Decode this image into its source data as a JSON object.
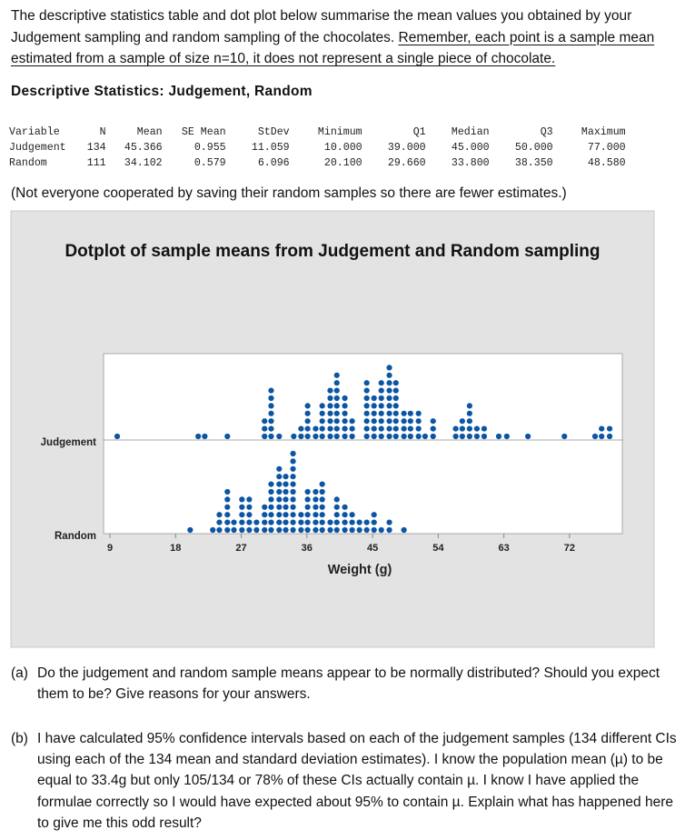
{
  "intro": {
    "part1": "The descriptive statistics table and dot plot below summarise the mean values you obtained by your Judgement sampling and random sampling of the chocolates. ",
    "part2": "Remember, each point is a sample mean estimated from a sample of size n=10, it does not represent a single piece of chocolate."
  },
  "stats": {
    "heading": "Descriptive Statistics: Judgement, Random",
    "columns": [
      "Variable",
      "N",
      "Mean",
      "SE Mean",
      "StDev",
      "Minimum",
      "Q1",
      "Median",
      "Q3",
      "Maximum"
    ],
    "rows": [
      [
        "Judgement",
        "134",
        "45.366",
        "0.955",
        "11.059",
        "10.000",
        "39.000",
        "45.000",
        "50.000",
        "77.000"
      ],
      [
        "Random",
        "111",
        "34.102",
        "0.579",
        "6.096",
        "20.100",
        "29.660",
        "33.800",
        "38.350",
        "48.580"
      ]
    ],
    "note": "(Not everyone cooperated by saving their random samples so there are fewer estimates.)"
  },
  "chart_data": {
    "type": "dotplot",
    "title": "Dotplot of sample means from Judgement and Random sampling",
    "xlabel": "Weight (g)",
    "xticks": [
      9,
      18,
      27,
      36,
      45,
      54,
      63,
      72
    ],
    "xlim": [
      8,
      79
    ],
    "grid": false,
    "dot_color": "#0b55a3",
    "panel_color": "#e3e3e3",
    "series": [
      {
        "name": "Judgement",
        "points": [
          [
            10.0,
            1
          ],
          [
            21.1,
            1
          ],
          [
            22.0,
            1
          ],
          [
            25.1,
            1
          ],
          [
            30.2,
            3
          ],
          [
            31.1,
            7
          ],
          [
            32.2,
            1
          ],
          [
            34.2,
            1
          ],
          [
            35.2,
            2
          ],
          [
            36.1,
            5
          ],
          [
            37.2,
            2
          ],
          [
            38.1,
            5
          ],
          [
            39.2,
            7
          ],
          [
            40.1,
            9
          ],
          [
            41.2,
            6
          ],
          [
            42.2,
            3
          ],
          [
            44.2,
            8
          ],
          [
            45.2,
            6
          ],
          [
            46.2,
            8
          ],
          [
            47.3,
            10
          ],
          [
            48.2,
            8
          ],
          [
            49.3,
            4
          ],
          [
            50.2,
            4
          ],
          [
            51.3,
            4
          ],
          [
            52.2,
            1
          ],
          [
            53.3,
            3
          ],
          [
            56.4,
            2
          ],
          [
            57.3,
            3
          ],
          [
            58.3,
            5
          ],
          [
            59.3,
            2
          ],
          [
            60.3,
            2
          ],
          [
            62.3,
            1
          ],
          [
            63.4,
            1
          ],
          [
            66.3,
            1
          ],
          [
            71.3,
            1
          ],
          [
            75.5,
            1
          ],
          [
            76.4,
            2
          ],
          [
            77.5,
            2
          ]
        ]
      },
      {
        "name": "Random",
        "points": [
          [
            20.0,
            1
          ],
          [
            23.1,
            1
          ],
          [
            24.0,
            3
          ],
          [
            25.1,
            6
          ],
          [
            26.0,
            2
          ],
          [
            27.1,
            5
          ],
          [
            28.1,
            5
          ],
          [
            29.1,
            2
          ],
          [
            30.2,
            4
          ],
          [
            31.1,
            7
          ],
          [
            32.2,
            9
          ],
          [
            33.1,
            8
          ],
          [
            34.1,
            11
          ],
          [
            35.2,
            3
          ],
          [
            36.1,
            6
          ],
          [
            37.2,
            6
          ],
          [
            38.1,
            7
          ],
          [
            39.2,
            2
          ],
          [
            40.1,
            5
          ],
          [
            41.2,
            4
          ],
          [
            42.2,
            3
          ],
          [
            43.2,
            2
          ],
          [
            44.2,
            2
          ],
          [
            45.2,
            3
          ],
          [
            46.2,
            1
          ],
          [
            47.3,
            2
          ],
          [
            49.3,
            1
          ]
        ]
      }
    ]
  },
  "questions": [
    {
      "label": "(a)",
      "text": "Do the judgement and random sample means appear to be normally distributed? Should you expect them to be? Give reasons for your answers."
    },
    {
      "label": "(b)",
      "text": "I have calculated 95% confidence intervals based on each of the judgement samples (134 different CIs using each of the 134 mean and standard deviation estimates). I know the population mean (µ) to be equal to 33.4g but only 105/134 or 78% of these CIs actually contain µ. I know I have applied the formulae correctly so I would have expected about 95% to contain µ. Explain what has happened here to give me this odd result?"
    }
  ]
}
